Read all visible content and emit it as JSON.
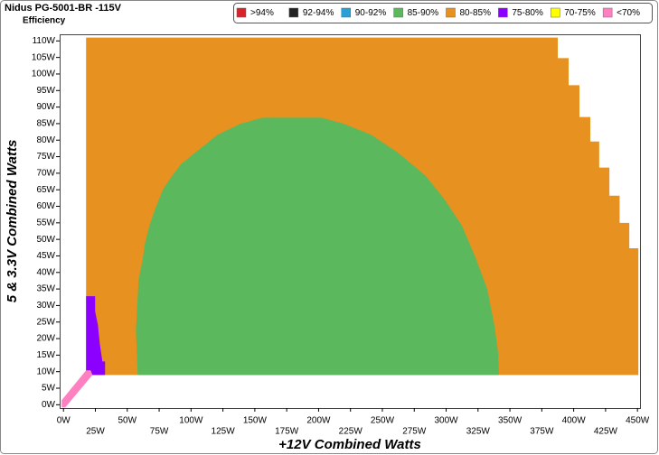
{
  "chart_data": {
    "type": "region",
    "title": "Nidus PG-5001-BR -115V",
    "subtitle": "Efficiency",
    "x_label": "+12V Combined Watts",
    "y_label": "5 & 3.3V Combined Watts",
    "xlim": [
      -3,
      452
    ],
    "ylim": [
      -1,
      112
    ],
    "xticks": [
      {
        "value": 0,
        "label": "0W"
      },
      {
        "value": 25,
        "label": "25W"
      },
      {
        "value": 50,
        "label": "50W"
      },
      {
        "value": 75,
        "label": "75W"
      },
      {
        "value": 100,
        "label": "100W"
      },
      {
        "value": 125,
        "label": "125W"
      },
      {
        "value": 150,
        "label": "150W"
      },
      {
        "value": 175,
        "label": "175W"
      },
      {
        "value": 200,
        "label": "200W"
      },
      {
        "value": 225,
        "label": "225W"
      },
      {
        "value": 250,
        "label": "250W"
      },
      {
        "value": 275,
        "label": "275W"
      },
      {
        "value": 300,
        "label": "300W"
      },
      {
        "value": 325,
        "label": "325W"
      },
      {
        "value": 350,
        "label": "350W"
      },
      {
        "value": 375,
        "label": "375W"
      },
      {
        "value": 400,
        "label": "400W"
      },
      {
        "value": 425,
        "label": "425W"
      },
      {
        "value": 450,
        "label": "450W"
      }
    ],
    "yticks": [
      {
        "value": 0,
        "label": "0W"
      },
      {
        "value": 5,
        "label": "5W"
      },
      {
        "value": 10,
        "label": "10W"
      },
      {
        "value": 15,
        "label": "15W"
      },
      {
        "value": 20,
        "label": "20W"
      },
      {
        "value": 25,
        "label": "25W"
      },
      {
        "value": 30,
        "label": "30W"
      },
      {
        "value": 35,
        "label": "35W"
      },
      {
        "value": 40,
        "label": "40W"
      },
      {
        "value": 45,
        "label": "45W"
      },
      {
        "value": 50,
        "label": "50W"
      },
      {
        "value": 55,
        "label": "55W"
      },
      {
        "value": 60,
        "label": "60W"
      },
      {
        "value": 65,
        "label": "65W"
      },
      {
        "value": 70,
        "label": "70W"
      },
      {
        "value": 75,
        "label": "75W"
      },
      {
        "value": 80,
        "label": "80W"
      },
      {
        "value": 85,
        "label": "85W"
      },
      {
        "value": 90,
        "label": "90W"
      },
      {
        "value": 95,
        "label": "95W"
      },
      {
        "value": 100,
        "label": "100W"
      },
      {
        "value": 105,
        "label": "105W"
      },
      {
        "value": 110,
        "label": "110W"
      }
    ],
    "series": [
      {
        "name": ">94%",
        "color": "#d8232a"
      },
      {
        "name": "92-94%",
        "color": "#222222"
      },
      {
        "name": "90-92%",
        "color": "#2a9fd6"
      },
      {
        "name": "85-90%",
        "color": "#5cb85c",
        "x": [
          58.2,
          56.8,
          58.9,
          61.7,
          63.9,
          67.4,
          72.4,
          78.1,
          85.2,
          92.3,
          102.9,
          120.7,
          138.4,
          156.1,
          202.3,
          220.0,
          241.3,
          262.6,
          283.9,
          298.1,
          312.3,
          322.9,
          332.2,
          337.8,
          340.7,
          341.4
        ],
        "values": [
          9.0,
          22.7,
          37.8,
          43.2,
          48.7,
          54.2,
          59.7,
          65.2,
          69.2,
          72.8,
          76.1,
          81.6,
          84.9,
          86.8,
          86.8,
          84.9,
          81.6,
          76.1,
          69.2,
          62.4,
          54.2,
          44.6,
          35.0,
          24.1,
          15.9,
          9.0
        ]
      },
      {
        "name": "80-85%",
        "color": "#e69120",
        "x": [
          17.7,
          17.7,
          387.5,
          387.5,
          396,
          396,
          404.5,
          404.5,
          413,
          413,
          420,
          420,
          428,
          428,
          436,
          436,
          443.6,
          443.6,
          450.7,
          450.7
        ],
        "values": [
          9,
          111,
          111,
          104.8,
          104.8,
          96.6,
          96.6,
          87,
          87,
          79.6,
          79.6,
          71.7,
          71.7,
          63.2,
          63.2,
          55,
          55,
          47.3,
          47.3,
          9
        ]
      },
      {
        "name": "75-80%",
        "color": "#8b00ff",
        "x": [
          17.7,
          24.8,
          24.8,
          27,
          28.4,
          30.5,
          32.6,
          32.6,
          17.7
        ],
        "values": [
          32.8,
          32.8,
          28.2,
          24.1,
          18.6,
          13.1,
          13.1,
          9,
          9
        ]
      },
      {
        "name": "70-75%",
        "color": "#ffff00"
      },
      {
        "name": "<70%",
        "color": "#ff80c0",
        "x": [
          -1.4,
          1.4,
          22.7,
          21.3,
          17.7,
          -1.4
        ],
        "values": [
          -0.8,
          -0.8,
          9.0,
          10.4,
          10.4,
          1.4
        ]
      }
    ]
  }
}
